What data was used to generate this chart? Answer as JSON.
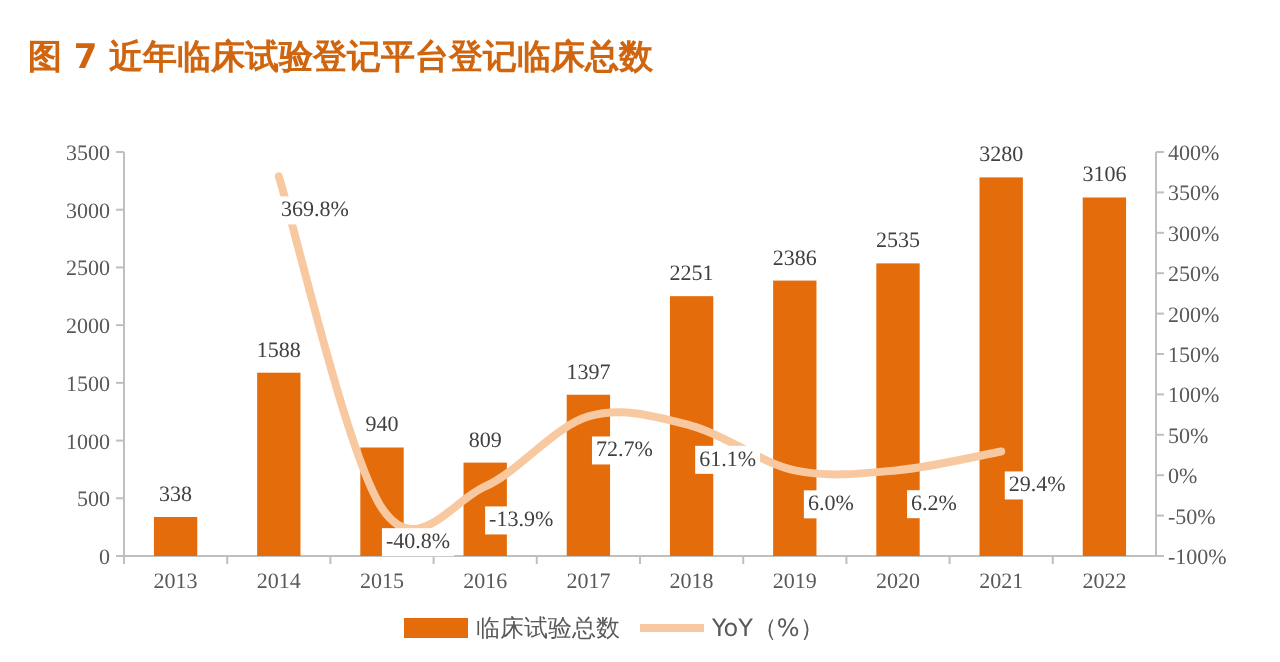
{
  "chart_data": {
    "type": "bar",
    "title": "图 7 近年临床试验登记平台登记临床总数",
    "categories": [
      "2013",
      "2014",
      "2015",
      "2016",
      "2017",
      "2018",
      "2019",
      "2020",
      "2021",
      "2022"
    ],
    "series": [
      {
        "name": "临床试验总数",
        "color": "#e46c0a",
        "values": [
          338,
          1588,
          940,
          809,
          1397,
          2251,
          2386,
          2535,
          3280,
          3106
        ]
      },
      {
        "name": "YoY（%）",
        "type": "line",
        "axis": "y2",
        "color": "#f8c9a0",
        "values": [
          null,
          369.8,
          -40.8,
          -13.9,
          72.7,
          61.1,
          6.0,
          6.2,
          29.4,
          null
        ],
        "value_labels": [
          null,
          "369.8%",
          "-40.8%",
          "-13.9%",
          "72.7%",
          "61.1%",
          "6.0%",
          "6.2%",
          "29.4%",
          null
        ]
      }
    ],
    "ylim": [
      0,
      3500
    ],
    "yticks": [
      0,
      500,
      1000,
      1500,
      2000,
      2500,
      3000,
      3500
    ],
    "y2lim": [
      -100,
      400
    ],
    "y2ticks": [
      {
        "value": -100,
        "label": "-100%"
      },
      {
        "value": -50,
        "label": "-50%"
      },
      {
        "value": 0,
        "label": "0%"
      },
      {
        "value": 50,
        "label": "50%"
      },
      {
        "value": 100,
        "label": "100%"
      },
      {
        "value": 150,
        "label": "150%"
      },
      {
        "value": 200,
        "label": "200%"
      },
      {
        "value": 250,
        "label": "250%"
      },
      {
        "value": 300,
        "label": "300%"
      },
      {
        "value": 350,
        "label": "350%"
      },
      {
        "value": 400,
        "label": "400%"
      }
    ],
    "data_labels": true,
    "legend": "bottom",
    "grid": false
  }
}
